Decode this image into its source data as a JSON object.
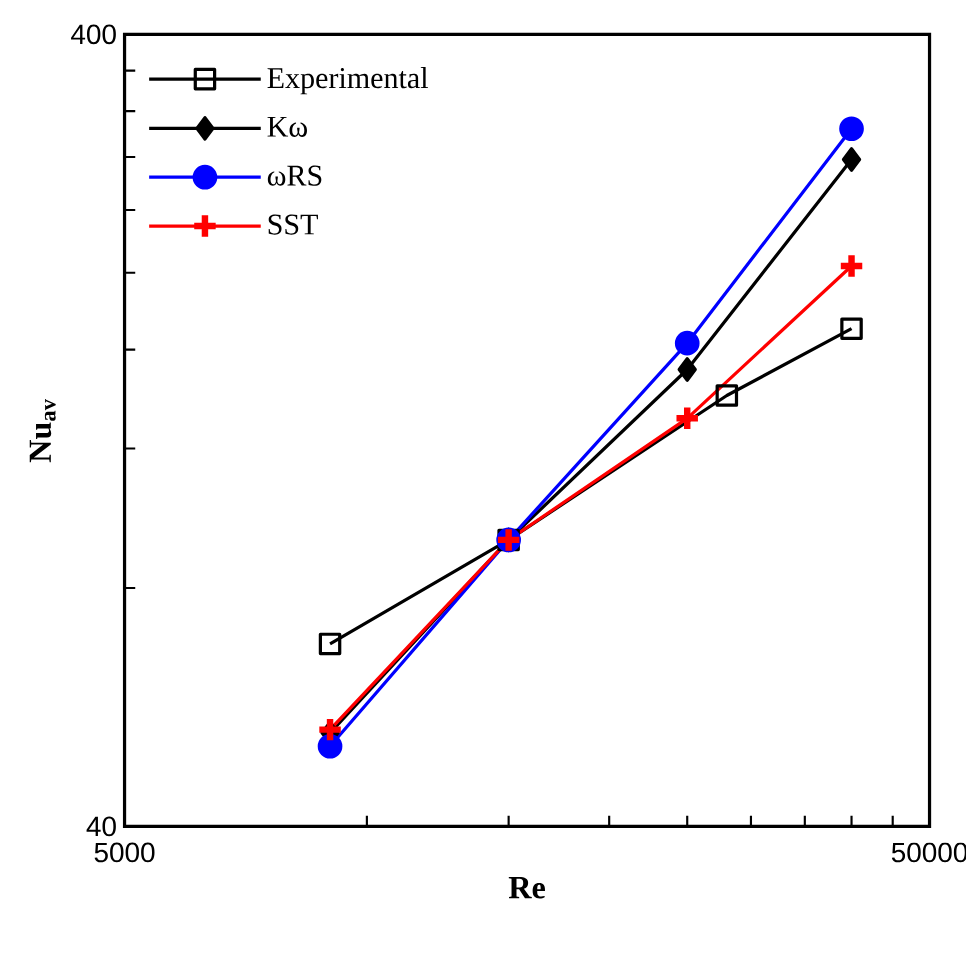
{
  "chart_data": {
    "type": "line",
    "xlabel": "Re",
    "ylabel": "Nu$_{av}$",
    "log": "xy",
    "legend": "top left",
    "xlim": [
      5000,
      50000
    ],
    "ylim": [
      40,
      400
    ],
    "xticks": [
      5000,
      {
        "value": 10000,
        "label": null
      },
      {
        "value": 15000,
        "label": null
      },
      {
        "value": 20000,
        "label": null
      },
      {
        "value": 25000,
        "label": null
      },
      {
        "value": 30000,
        "label": null
      },
      {
        "value": 35000,
        "label": null
      },
      {
        "value": 40000,
        "label": null
      },
      {
        "value": 45000,
        "label": null
      },
      50000
    ],
    "yticks": [
      40,
      {
        "value": 80,
        "label": null
      },
      {
        "value": 120,
        "label": null
      },
      {
        "value": 160,
        "label": null
      },
      {
        "value": 200,
        "label": null
      },
      {
        "value": 240,
        "label": null
      },
      {
        "value": 280,
        "label": null
      },
      {
        "value": 320,
        "label": null
      },
      {
        "value": 360,
        "label": null
      },
      400
    ],
    "series": [
      {
        "name": "Experimental",
        "color": "#000000",
        "marker": "square",
        "x": [
          9000,
          15000,
          28000,
          40000
        ],
        "values": [
          68,
          92,
          140,
          170
        ]
      },
      {
        "name": "Kω",
        "color": "#000000",
        "marker": "diamond",
        "x": [
          9000,
          15000,
          25000,
          40000
        ],
        "values": [
          52.5,
          92,
          151,
          278
        ]
      },
      {
        "name": "ωRS",
        "color": "#0000ff",
        "marker": "circle",
        "x": [
          9000,
          15000,
          25000,
          40000
        ],
        "values": [
          50.5,
          92,
          163,
          304
        ]
      },
      {
        "name": "SST",
        "color": "#ff0000",
        "marker": "cross",
        "x": [
          9000,
          15000,
          25000,
          40000
        ],
        "values": [
          53,
          92,
          131,
          204
        ]
      }
    ]
  }
}
